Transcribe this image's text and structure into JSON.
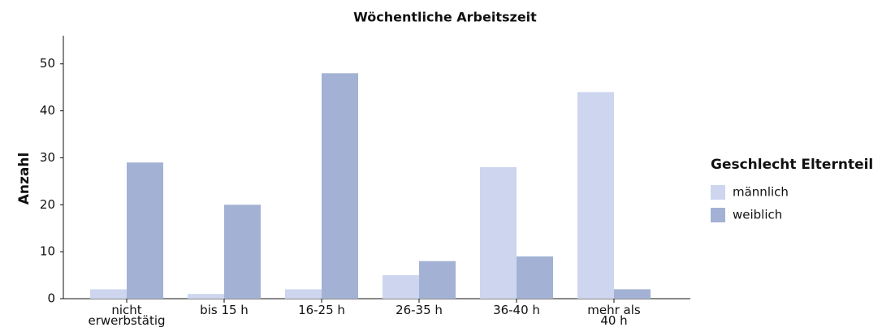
{
  "chart_data": {
    "type": "bar",
    "title": "Wöchentliche Arbeitszeit",
    "y_label": "Anzahl",
    "categories": [
      "nicht erwerbstätig",
      "bis 15 h",
      "16-25 h",
      "26-35 h",
      "36-40 h",
      "mehr als 40 h"
    ],
    "series": [
      {
        "name": "männlich",
        "color": "#cdd6ee",
        "values": [
          2,
          1,
          2,
          5,
          28,
          44
        ]
      },
      {
        "name": "weiblich",
        "color": "#a3b2d4",
        "values": [
          29,
          20,
          48,
          8,
          9,
          2
        ]
      }
    ],
    "legend_title": "Geschlecht Elternteil",
    "legend": "right",
    "ylim": [
      0,
      56
    ],
    "yticks": [
      0,
      10,
      20,
      30,
      40,
      50
    ],
    "grid": false
  }
}
